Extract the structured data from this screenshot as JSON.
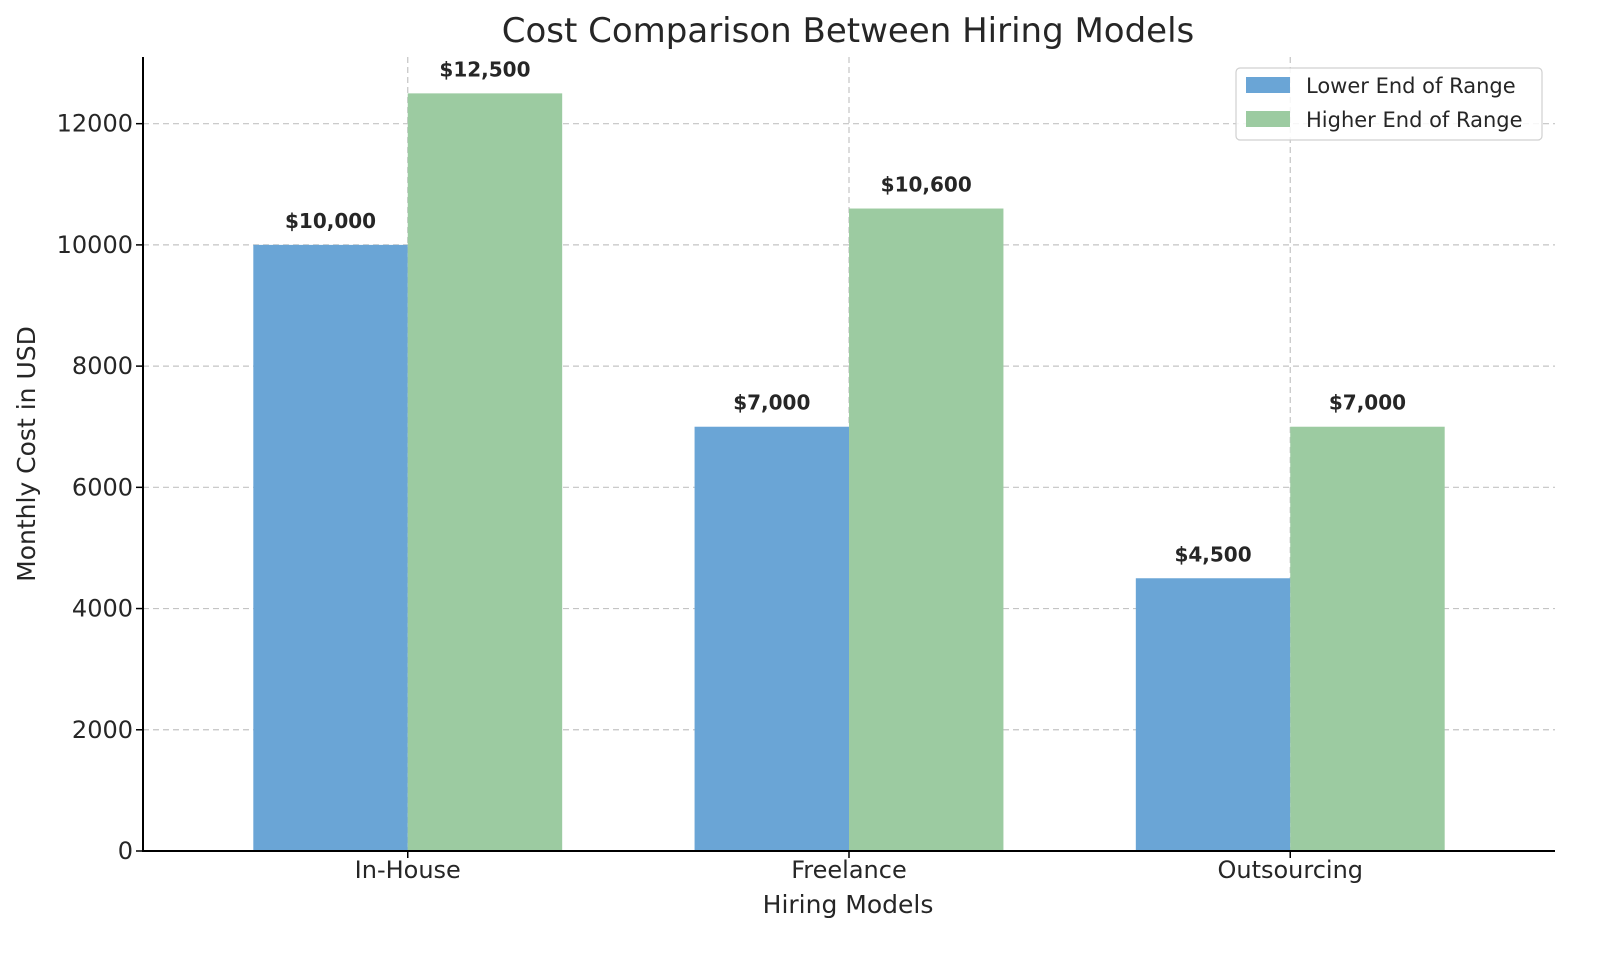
{
  "chart_data": {
    "type": "bar",
    "title": "Cost Comparison Between Hiring Models",
    "xlabel": "Hiring Models",
    "ylabel": "Monthly Cost in USD",
    "categories": [
      "In-House",
      "Freelance",
      "Outsourcing"
    ],
    "series": [
      {
        "name": "Lower End of Range",
        "color": "#6aa5d6",
        "values": [
          10000,
          7000,
          4500
        ],
        "value_labels": [
          "$10,000",
          "$7,000",
          "$4,500"
        ]
      },
      {
        "name": "Higher End of Range",
        "color": "#9ccba1",
        "values": [
          12500,
          10600,
          7000
        ],
        "value_labels": [
          "$12,500",
          "$10,600",
          "$7,000"
        ]
      }
    ],
    "ylim": [
      0,
      13100
    ],
    "yticks": [
      0,
      2000,
      4000,
      6000,
      8000,
      10000,
      12000
    ],
    "ytick_labels": [
      "0",
      "2000",
      "4000",
      "6000",
      "8000",
      "10000",
      "12000"
    ],
    "grid": true,
    "legend_position": "top-right"
  }
}
